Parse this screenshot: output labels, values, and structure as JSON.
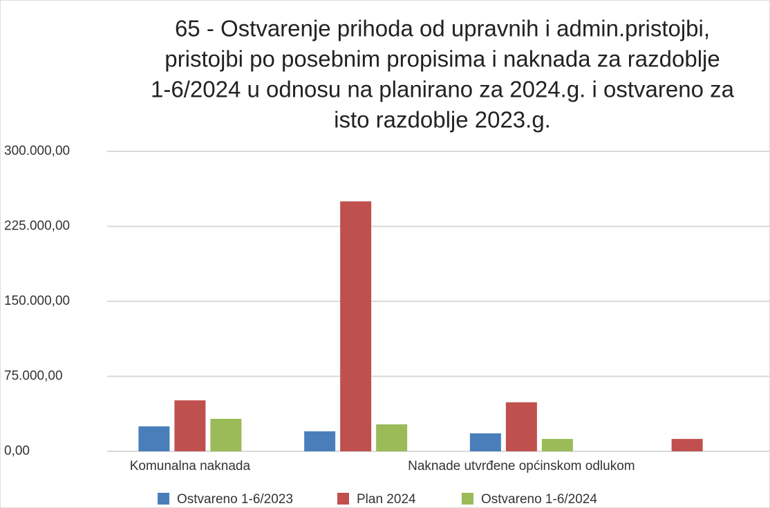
{
  "chart_data": {
    "type": "bar",
    "title": [
      "65 - Ostvarenje  prihoda od upravnih i admin.pristojbi,",
      "pristojbi po posebnim propisima i naknada za razdoblje",
      "1-6/2024 u odnosu na planirano za 2024.g. i ostvareno za",
      "isto razdoblje 2023.g."
    ],
    "categories": [
      "Komunalna naknada",
      null,
      "Naknade utvrđene općinskom odlukom",
      null
    ],
    "series": [
      {
        "name": "Ostvareno 1-6/2023",
        "color": "#4a7ebb",
        "values": [
          25000,
          20000,
          18000,
          0
        ]
      },
      {
        "name": "Plan 2024",
        "color": "#c0504d",
        "values": [
          51000,
          250000,
          49000,
          12400
        ]
      },
      {
        "name": "Ostvareno 1-6/2024",
        "color": "#9bbb59",
        "values": [
          32500,
          27000,
          12400,
          0
        ]
      }
    ],
    "ylim": [
      0,
      300000
    ],
    "yticks": [
      {
        "value": 0,
        "label": "0,00"
      },
      {
        "value": 75000,
        "label": "75.000,00"
      },
      {
        "value": 150000,
        "label": "150.000,00"
      },
      {
        "value": 225000,
        "label": "225.000,00"
      },
      {
        "value": 300000,
        "label": "300.000,00"
      }
    ],
    "grid": true,
    "legend": "bottom"
  }
}
